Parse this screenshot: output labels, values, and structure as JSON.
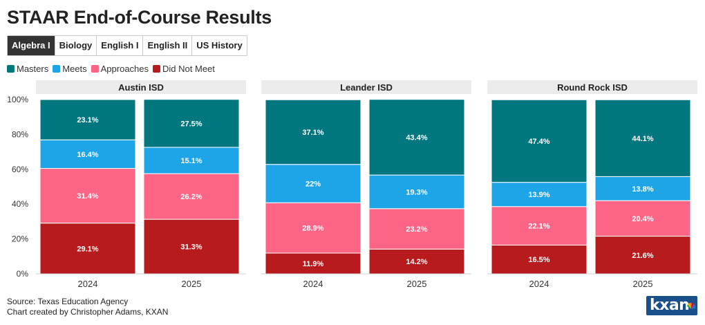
{
  "title": "STAAR End-of-Course Results",
  "tabs": [
    {
      "label": "Algebra I",
      "active": true
    },
    {
      "label": "Biology",
      "active": false
    },
    {
      "label": "English I",
      "active": false
    },
    {
      "label": "English II",
      "active": false
    },
    {
      "label": "US History",
      "active": false
    }
  ],
  "footer": {
    "source": "Source: Texas Education Agency",
    "credit": "Chart created by Christopher Adams, KXAN"
  },
  "logo": {
    "text": "kxan",
    "icon": "nbc-peacock-icon"
  },
  "colors": {
    "Masters": "#00767f",
    "Meets": "#1ea5e8",
    "Approaches": "#fd6586",
    "Did Not Meet": "#b81b1e",
    "panel_header": "#ececec",
    "active_tab": "#333333"
  },
  "chart_data": {
    "type": "bar",
    "stacked": true,
    "percent": true,
    "panels": [
      "Austin ISD",
      "Leander ISD",
      "Round Rock ISD"
    ],
    "categories": [
      "2024",
      "2025"
    ],
    "series": [
      {
        "name": "Masters",
        "values": {
          "Austin ISD": [
            23.1,
            27.5
          ],
          "Leander ISD": [
            37.1,
            43.4
          ],
          "Round Rock ISD": [
            47.4,
            44.1
          ]
        }
      },
      {
        "name": "Meets",
        "values": {
          "Austin ISD": [
            16.4,
            15.1
          ],
          "Leander ISD": [
            22,
            19.3
          ],
          "Round Rock ISD": [
            13.9,
            13.8
          ]
        }
      },
      {
        "name": "Approaches",
        "values": {
          "Austin ISD": [
            31.4,
            26.2
          ],
          "Leander ISD": [
            28.9,
            23.2
          ],
          "Round Rock ISD": [
            22.1,
            20.4
          ]
        }
      },
      {
        "name": "Did Not Meet",
        "values": {
          "Austin ISD": [
            29.1,
            31.3
          ],
          "Leander ISD": [
            11.9,
            14.2
          ],
          "Round Rock ISD": [
            16.5,
            21.6
          ]
        }
      }
    ],
    "yticks": [
      "0%",
      "20%",
      "40%",
      "60%",
      "80%",
      "100%"
    ],
    "ylim": [
      0,
      100
    ],
    "legend_position": "top-left",
    "grid": false
  }
}
